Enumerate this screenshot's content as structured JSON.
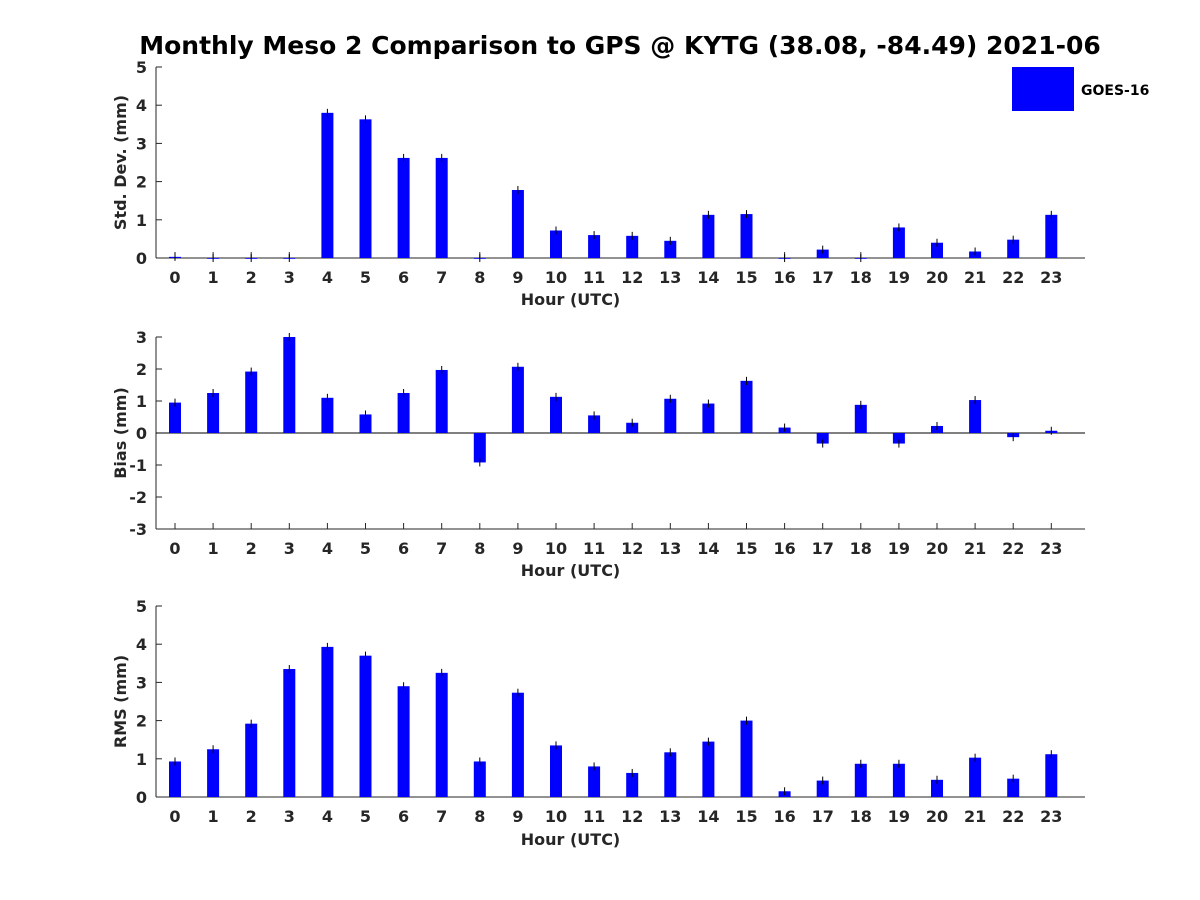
{
  "title": "Monthly Meso 2 Comparison to GPS @ KYTG (38.08, -84.49) 2021-06",
  "colors": {
    "bar": "#0000ff"
  },
  "legend": {
    "label": "GOES-16",
    "placement": "top-right"
  },
  "chart_data": [
    {
      "type": "bar",
      "xlabel": "Hour (UTC)",
      "ylabel": "Std. Dev. (mm)",
      "ylim": [
        0,
        5
      ],
      "yticks": [
        0,
        1,
        2,
        3,
        4,
        5
      ],
      "categories": [
        "0",
        "1",
        "2",
        "3",
        "4",
        "5",
        "6",
        "7",
        "8",
        "9",
        "10",
        "11",
        "12",
        "13",
        "14",
        "15",
        "16",
        "17",
        "18",
        "19",
        "20",
        "21",
        "22",
        "23"
      ],
      "series": [
        {
          "name": "GOES-16",
          "values": [
            0.03,
            0,
            0,
            0,
            3.8,
            3.63,
            2.62,
            2.62,
            0,
            1.78,
            0.72,
            0.6,
            0.58,
            0.45,
            1.13,
            1.15,
            0,
            0.22,
            0,
            0.8,
            0.4,
            0.17,
            0.48,
            1.13
          ]
        }
      ]
    },
    {
      "type": "bar",
      "xlabel": "Hour (UTC)",
      "ylabel": "Bias (mm)",
      "ylim": [
        -3,
        3
      ],
      "yticks": [
        -3,
        -2,
        -1,
        0,
        1,
        2,
        3
      ],
      "categories": [
        "0",
        "1",
        "2",
        "3",
        "4",
        "5",
        "6",
        "7",
        "8",
        "9",
        "10",
        "11",
        "12",
        "13",
        "14",
        "15",
        "16",
        "17",
        "18",
        "19",
        "20",
        "21",
        "22",
        "23"
      ],
      "series": [
        {
          "name": "GOES-16",
          "values": [
            0.95,
            1.25,
            1.92,
            3.0,
            1.1,
            0.58,
            1.25,
            1.97,
            -0.92,
            2.07,
            1.13,
            0.55,
            0.32,
            1.07,
            0.92,
            1.63,
            0.17,
            -0.33,
            0.88,
            -0.33,
            0.22,
            1.03,
            -0.13,
            0.07
          ]
        }
      ]
    },
    {
      "type": "bar",
      "xlabel": "Hour (UTC)",
      "ylabel": "RMS (mm)",
      "ylim": [
        0,
        5
      ],
      "yticks": [
        0,
        1,
        2,
        3,
        4,
        5
      ],
      "categories": [
        "0",
        "1",
        "2",
        "3",
        "4",
        "5",
        "6",
        "7",
        "8",
        "9",
        "10",
        "11",
        "12",
        "13",
        "14",
        "15",
        "16",
        "17",
        "18",
        "19",
        "20",
        "21",
        "22",
        "23"
      ],
      "series": [
        {
          "name": "GOES-16",
          "values": [
            0.93,
            1.25,
            1.92,
            3.35,
            3.93,
            3.7,
            2.9,
            3.25,
            0.93,
            2.73,
            1.35,
            0.8,
            0.63,
            1.17,
            1.45,
            2.0,
            0.15,
            0.43,
            0.87,
            0.87,
            0.45,
            1.03,
            0.48,
            1.12
          ]
        }
      ]
    }
  ]
}
